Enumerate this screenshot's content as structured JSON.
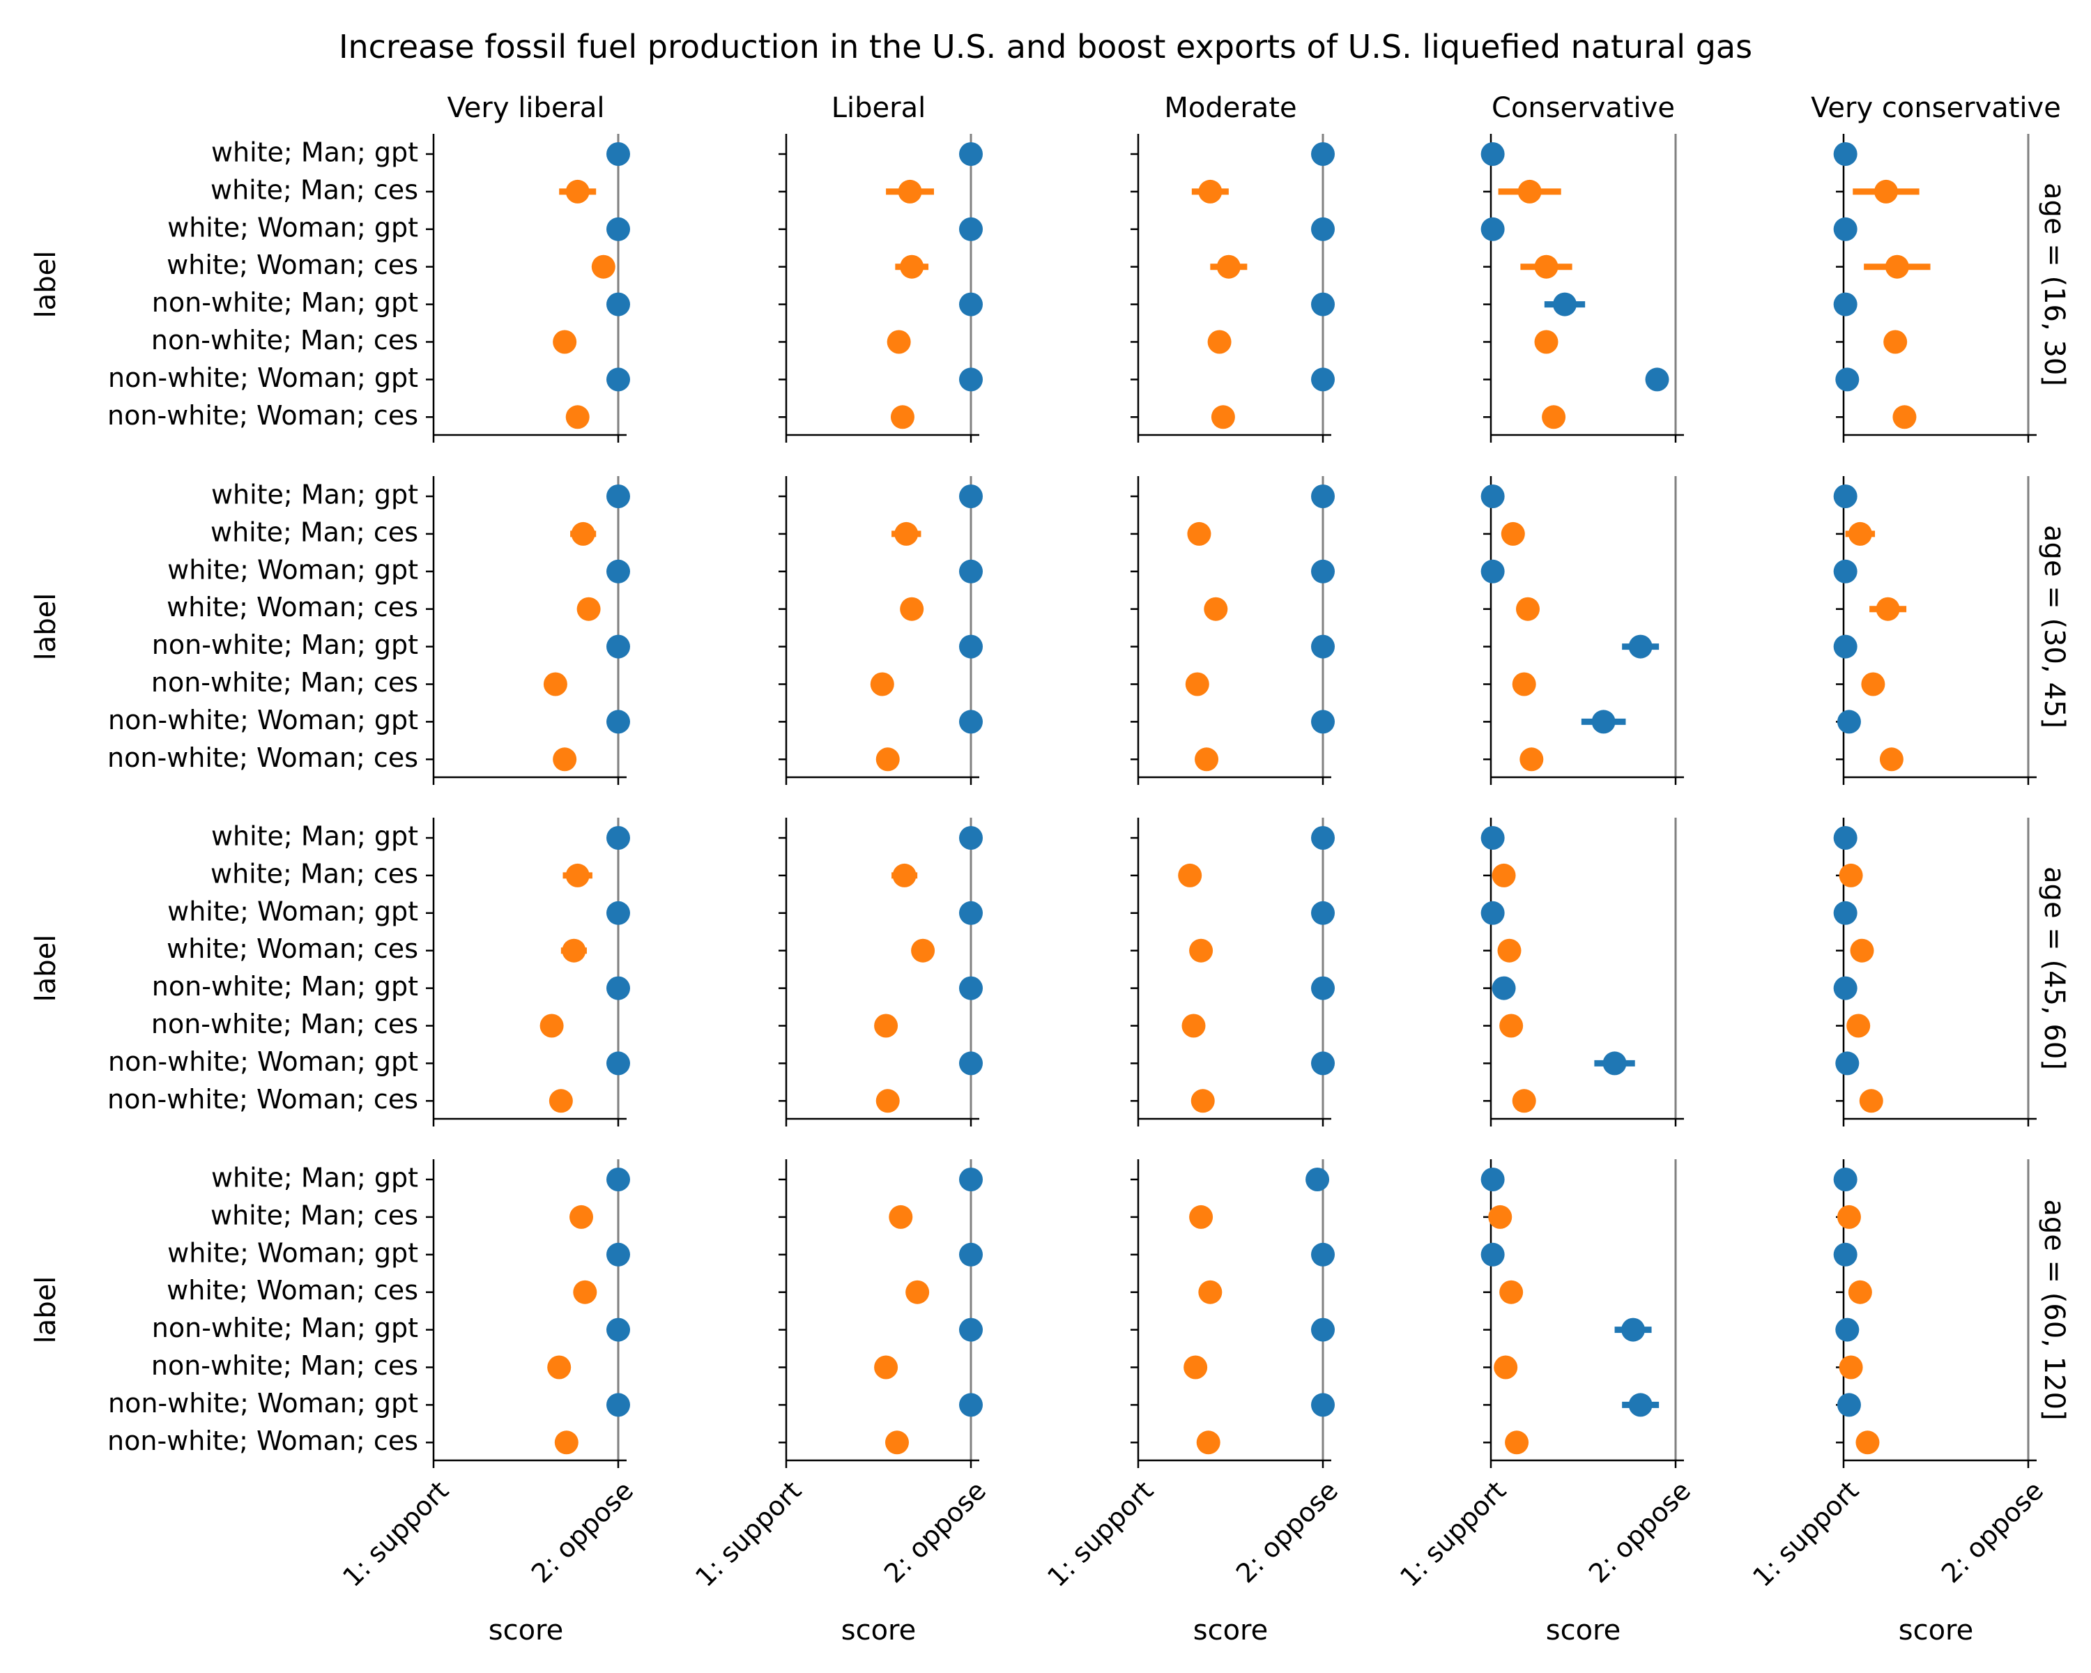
{
  "chart_data": {
    "type": "scatter",
    "title": "Increase fossil fuel production in the U.S. and boost exports of U.S. liquefied natural gas",
    "xlabel": "score",
    "ylabel": "label",
    "xlim": [
      1,
      2
    ],
    "x_tick_labels": [
      "1: support",
      "2: oppose"
    ],
    "x_tick_values": [
      1,
      2
    ],
    "reference_line_x": 2,
    "columns": [
      "Very liberal",
      "Liberal",
      "Moderate",
      "Conservative",
      "Very conservative"
    ],
    "rows": [
      "age = (16, 30]",
      "age = (30, 45]",
      "age = (45, 60]",
      "age = (60, 120]"
    ],
    "categories": [
      "white; Man; gpt",
      "white; Man; ces",
      "white; Woman; gpt",
      "white; Woman; ces",
      "non-white; Man; gpt",
      "non-white; Man; ces",
      "non-white; Woman; gpt",
      "non-white; Woman; ces"
    ],
    "series_colors": {
      "gpt": "#1f77b4",
      "ces": "#ff7f0e"
    },
    "panels": [
      [
        {
          "values": [
            2.0,
            1.78,
            2.0,
            1.92,
            2.0,
            1.71,
            2.0,
            1.78
          ],
          "err": [
            0,
            0.1,
            0,
            0.03,
            0,
            0.03,
            0,
            0.03
          ]
        },
        {
          "values": [
            2.0,
            1.67,
            2.0,
            1.68,
            2.0,
            1.61,
            2.0,
            1.63
          ],
          "err": [
            0,
            0.13,
            0,
            0.09,
            0,
            0.03,
            0,
            0.03
          ]
        },
        {
          "values": [
            2.0,
            1.39,
            2.0,
            1.49,
            2.0,
            1.44,
            2.0,
            1.46
          ],
          "err": [
            0,
            0.1,
            0,
            0.1,
            0,
            0.03,
            0,
            0.03
          ]
        },
        {
          "values": [
            1.01,
            1.21,
            1.01,
            1.3,
            1.4,
            1.3,
            1.9,
            1.34
          ],
          "err": [
            0,
            0.17,
            0,
            0.14,
            0.11,
            0.03,
            0.04,
            0.03
          ]
        },
        {
          "values": [
            1.01,
            1.23,
            1.01,
            1.29,
            1.01,
            1.28,
            1.02,
            1.33
          ],
          "err": [
            0,
            0.18,
            0,
            0.18,
            0,
            0.03,
            0,
            0.03
          ]
        }
      ],
      [
        {
          "values": [
            2.0,
            1.81,
            2.0,
            1.84,
            2.0,
            1.66,
            2.0,
            1.71
          ],
          "err": [
            0,
            0.07,
            0,
            0.03,
            0,
            0.03,
            0,
            0.03
          ]
        },
        {
          "values": [
            2.0,
            1.65,
            2.0,
            1.68,
            2.0,
            1.52,
            2.0,
            1.55
          ],
          "err": [
            0,
            0.08,
            0,
            0.03,
            0,
            0.03,
            0,
            0.03
          ]
        },
        {
          "values": [
            2.0,
            1.33,
            2.0,
            1.42,
            2.0,
            1.32,
            2.0,
            1.37
          ],
          "err": [
            0,
            0.03,
            0,
            0.03,
            0,
            0.03,
            0,
            0.03
          ]
        },
        {
          "values": [
            1.01,
            1.12,
            1.01,
            1.2,
            1.81,
            1.18,
            1.61,
            1.22
          ],
          "err": [
            0,
            0.06,
            0,
            0.06,
            0.1,
            0.03,
            0.12,
            0.03
          ]
        },
        {
          "values": [
            1.01,
            1.09,
            1.01,
            1.24,
            1.01,
            1.16,
            1.03,
            1.26
          ],
          "err": [
            0,
            0.08,
            0,
            0.1,
            0,
            0.03,
            0,
            0.03
          ]
        }
      ],
      [
        {
          "values": [
            2.0,
            1.78,
            2.0,
            1.76,
            2.0,
            1.64,
            2.0,
            1.69
          ],
          "err": [
            0,
            0.08,
            0,
            0.07,
            0,
            0.03,
            0,
            0.03
          ]
        },
        {
          "values": [
            2.0,
            1.64,
            2.0,
            1.74,
            2.0,
            1.54,
            2.0,
            1.55
          ],
          "err": [
            0,
            0.07,
            0,
            0.03,
            0,
            0.03,
            0,
            0.03
          ]
        },
        {
          "values": [
            2.0,
            1.28,
            2.0,
            1.34,
            2.0,
            1.3,
            2.0,
            1.35
          ],
          "err": [
            0,
            0.03,
            0,
            0.03,
            0,
            0.03,
            0,
            0.03
          ]
        },
        {
          "values": [
            1.01,
            1.07,
            1.01,
            1.1,
            1.07,
            1.11,
            1.67,
            1.18
          ],
          "err": [
            0,
            0.03,
            0,
            0.03,
            0.03,
            0.03,
            0.11,
            0.03
          ]
        },
        {
          "values": [
            1.01,
            1.04,
            1.01,
            1.1,
            1.01,
            1.08,
            1.02,
            1.15
          ],
          "err": [
            0,
            0.03,
            0,
            0.03,
            0,
            0.03,
            0,
            0.03
          ]
        }
      ],
      [
        {
          "values": [
            2.0,
            1.8,
            2.0,
            1.82,
            2.0,
            1.68,
            2.0,
            1.72
          ],
          "err": [
            0,
            0.03,
            0,
            0.03,
            0,
            0.03,
            0,
            0.03
          ]
        },
        {
          "values": [
            2.0,
            1.62,
            2.0,
            1.71,
            2.0,
            1.54,
            2.0,
            1.6
          ],
          "err": [
            0,
            0.03,
            0,
            0.03,
            0,
            0.03,
            0,
            0.03
          ]
        },
        {
          "values": [
            1.97,
            1.34,
            2.0,
            1.39,
            2.0,
            1.31,
            2.0,
            1.38
          ],
          "err": [
            0,
            0.03,
            0,
            0.03,
            0,
            0.03,
            0,
            0.03
          ]
        },
        {
          "values": [
            1.01,
            1.05,
            1.01,
            1.11,
            1.77,
            1.08,
            1.81,
            1.14
          ],
          "err": [
            0,
            0.03,
            0,
            0.03,
            0.1,
            0.03,
            0.1,
            0.03
          ]
        },
        {
          "values": [
            1.01,
            1.03,
            1.01,
            1.09,
            1.02,
            1.04,
            1.03,
            1.13
          ],
          "err": [
            0,
            0.03,
            0,
            0.03,
            0,
            0.03,
            0,
            0.03
          ]
        }
      ]
    ]
  }
}
